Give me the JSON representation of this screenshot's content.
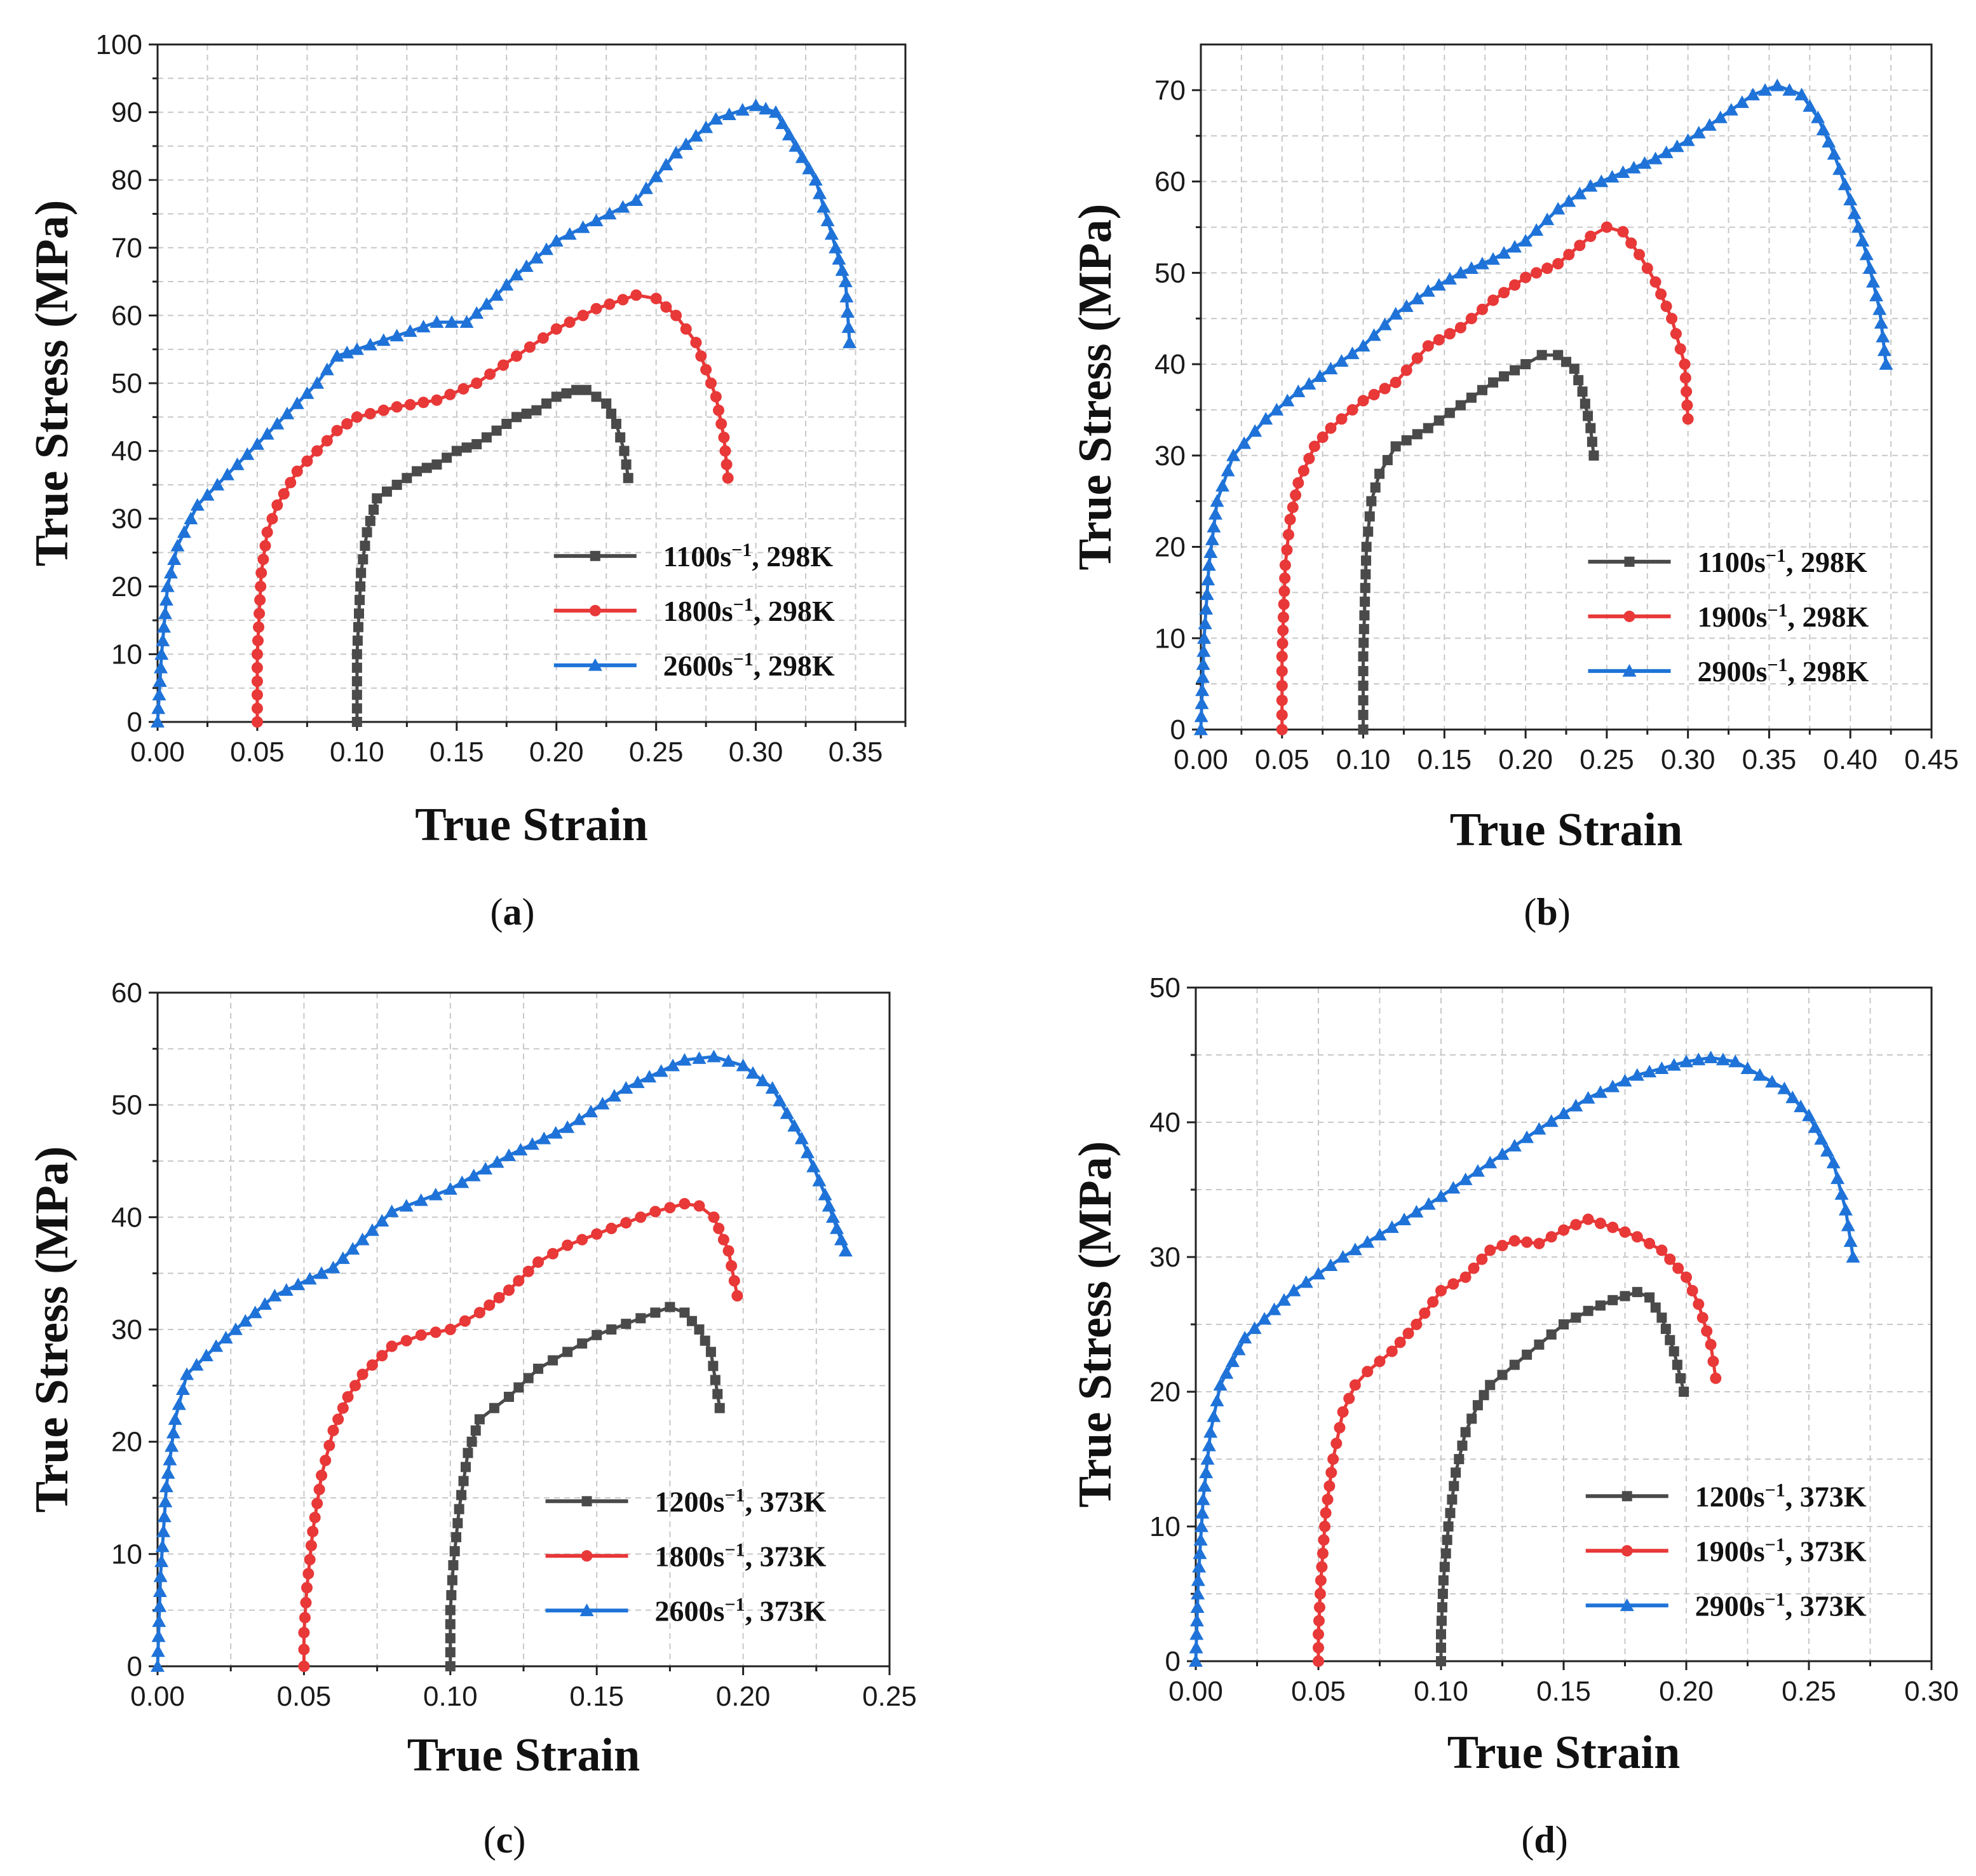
{
  "chart_data": [
    {
      "type": "line",
      "label": "a",
      "xlabel": "True Strain",
      "ylabel": "True Stress (MPa)",
      "xlim": [
        0,
        0.375
      ],
      "ylim": [
        0,
        100
      ],
      "xticks": [
        "0.00",
        "0.05",
        "0.10",
        "0.15",
        "0.20",
        "0.25",
        "0.30",
        "0.35"
      ],
      "yticks": [
        "0",
        "10",
        "20",
        "30",
        "40",
        "50",
        "60",
        "70",
        "80",
        "90",
        "100"
      ],
      "xgrid_step": 0.025,
      "ygrid_step": 5,
      "legend": {
        "placement": "lower-right"
      },
      "series": [
        {
          "name": "1100s−1, 298K",
          "rate": "1100",
          "temp": ", 298K",
          "color": "#4a4a4a",
          "marker": "square",
          "x": [
            0.1,
            0.1,
            0.102,
            0.105,
            0.11,
            0.12,
            0.13,
            0.14,
            0.15,
            0.16,
            0.17,
            0.18,
            0.19,
            0.2,
            0.21,
            0.215,
            0.22,
            0.225,
            0.23,
            0.234,
            0.236
          ],
          "y": [
            0,
            10,
            22,
            28,
            33,
            35,
            37,
            38,
            40,
            41,
            43,
            45,
            46,
            48,
            49,
            49,
            48,
            47,
            44,
            40,
            36
          ]
        },
        {
          "name": "1800s−1, 298K",
          "rate": "1800",
          "temp": ", 298K",
          "color": "#e83838",
          "marker": "circle",
          "x": [
            0.05,
            0.05,
            0.052,
            0.055,
            0.06,
            0.07,
            0.08,
            0.09,
            0.1,
            0.12,
            0.14,
            0.16,
            0.18,
            0.2,
            0.22,
            0.24,
            0.25,
            0.26,
            0.27,
            0.28,
            0.284,
            0.286
          ],
          "y": [
            0,
            10,
            22,
            28,
            32,
            37,
            40,
            43,
            45,
            46.5,
            47.5,
            50,
            54,
            58,
            61,
            63,
            62.5,
            60,
            56,
            48,
            42,
            36
          ]
        },
        {
          "name": "2600s−1, 298K",
          "rate": "2600",
          "temp": ", 298K",
          "color": "#1f73d8",
          "marker": "triangle",
          "x": [
            0,
            0.002,
            0.005,
            0.01,
            0.02,
            0.04,
            0.06,
            0.08,
            0.09,
            0.1,
            0.12,
            0.14,
            0.155,
            0.17,
            0.18,
            0.2,
            0.22,
            0.24,
            0.26,
            0.28,
            0.3,
            0.31,
            0.32,
            0.33,
            0.34,
            0.345,
            0.347
          ],
          "y": [
            0,
            10,
            20,
            26,
            32,
            38,
            44,
            50,
            54,
            55,
            57,
            59,
            59,
            63,
            66,
            71,
            74,
            77,
            84,
            89,
            91,
            90,
            85,
            80,
            70,
            65,
            56
          ]
        }
      ]
    },
    {
      "type": "line",
      "label": "b",
      "xlabel": "True Strain",
      "ylabel": "True Stress (MPa)",
      "xlim": [
        0,
        0.45
      ],
      "ylim": [
        0,
        75
      ],
      "xticks": [
        "0.00",
        "0.05",
        "0.10",
        "0.15",
        "0.20",
        "0.25",
        "0.30",
        "0.35",
        "0.40",
        "0.45"
      ],
      "yticks": [
        "0",
        "10",
        "20",
        "30",
        "40",
        "50",
        "60",
        "70"
      ],
      "xgrid_step": 0.025,
      "ygrid_step": 5,
      "legend": {
        "placement": "lower-right"
      },
      "series": [
        {
          "name": "1100s−1, 298K",
          "rate": "1100",
          "temp": ", 298K",
          "color": "#4a4a4a",
          "marker": "square",
          "x": [
            0.1,
            0.1,
            0.102,
            0.105,
            0.11,
            0.12,
            0.14,
            0.16,
            0.18,
            0.2,
            0.21,
            0.22,
            0.23,
            0.235,
            0.24,
            0.242
          ],
          "y": [
            0,
            8,
            20,
            25,
            28,
            31,
            33,
            35.5,
            38,
            40,
            41,
            41,
            39.5,
            37,
            33,
            30
          ]
        },
        {
          "name": "1900s−1, 298K",
          "rate": "1900",
          "temp": ", 298K",
          "color": "#e83838",
          "marker": "circle",
          "x": [
            0.05,
            0.05,
            0.052,
            0.055,
            0.06,
            0.07,
            0.08,
            0.1,
            0.12,
            0.14,
            0.16,
            0.18,
            0.2,
            0.22,
            0.24,
            0.25,
            0.26,
            0.27,
            0.28,
            0.29,
            0.298,
            0.3
          ],
          "y": [
            0,
            8,
            18,
            23,
            27,
            31,
            33,
            36,
            38,
            42,
            44,
            47,
            49.5,
            51,
            54,
            55,
            54.5,
            52,
            49,
            45,
            40,
            34
          ]
        },
        {
          "name": "2900s−1, 298K",
          "rate": "2900",
          "temp": ", 298K",
          "color": "#1f73d8",
          "marker": "triangle",
          "x": [
            0,
            0.002,
            0.005,
            0.01,
            0.02,
            0.04,
            0.06,
            0.08,
            0.1,
            0.12,
            0.14,
            0.16,
            0.18,
            0.2,
            0.22,
            0.24,
            0.26,
            0.28,
            0.3,
            0.32,
            0.34,
            0.355,
            0.37,
            0.38,
            0.39,
            0.4,
            0.41,
            0.418,
            0.422
          ],
          "y": [
            0,
            10,
            18,
            25,
            30,
            34,
            37,
            39.5,
            42,
            45.5,
            48,
            50,
            51.5,
            53.5,
            57,
            59.5,
            61,
            62.5,
            64.5,
            67,
            69.5,
            70.5,
            69.5,
            67,
            63,
            58,
            52,
            46,
            40
          ]
        }
      ]
    },
    {
      "type": "line",
      "label": "c",
      "xlabel": "True Strain",
      "ylabel": "True Stress (MPa)",
      "xlim": [
        0,
        0.25
      ],
      "ylim": [
        0,
        60
      ],
      "xticks": [
        "0.00",
        "0.05",
        "0.10",
        "0.15",
        "0.20",
        "0.25"
      ],
      "yticks": [
        "0",
        "10",
        "20",
        "30",
        "40",
        "50",
        "60"
      ],
      "xgrid_step": 0.025,
      "ygrid_step": 5,
      "legend": {
        "placement": "lower-right"
      },
      "series": [
        {
          "name": "1200s−1, 373K",
          "rate": "1200",
          "temp": ", 373K",
          "color": "#4a4a4a",
          "marker": "square",
          "x": [
            0.1,
            0.1,
            0.101,
            0.103,
            0.106,
            0.11,
            0.115,
            0.12,
            0.13,
            0.14,
            0.15,
            0.16,
            0.17,
            0.175,
            0.18,
            0.185,
            0.189,
            0.192
          ],
          "y": [
            0,
            5,
            9,
            14,
            19,
            22,
            23,
            24,
            26.5,
            28,
            29.5,
            30.5,
            31.5,
            32,
            31.5,
            30,
            28,
            23
          ]
        },
        {
          "name": "1800s−1, 373K",
          "rate": "1800",
          "temp": ", 373K",
          "color": "#e83838",
          "marker": "circle",
          "x": [
            0.05,
            0.05,
            0.051,
            0.053,
            0.056,
            0.06,
            0.065,
            0.07,
            0.08,
            0.09,
            0.1,
            0.11,
            0.12,
            0.13,
            0.14,
            0.15,
            0.16,
            0.17,
            0.18,
            0.185,
            0.19,
            0.195,
            0.198
          ],
          "y": [
            0,
            3,
            7,
            12,
            17,
            21,
            24,
            26,
            28.5,
            29.5,
            30,
            31.5,
            33.5,
            36,
            37.5,
            38.5,
            39.5,
            40.5,
            41.2,
            41,
            40,
            37,
            33
          ]
        },
        {
          "name": "2600s−1, 373K",
          "rate": "2600",
          "temp": ", 373K",
          "color": "#1f73d8",
          "marker": "triangle",
          "x": [
            0,
            0.001,
            0.003,
            0.006,
            0.01,
            0.02,
            0.04,
            0.06,
            0.07,
            0.08,
            0.1,
            0.12,
            0.14,
            0.16,
            0.18,
            0.19,
            0.2,
            0.21,
            0.22,
            0.228,
            0.232,
            0.235
          ],
          "y": [
            0,
            8,
            16,
            22,
            26,
            28.5,
            33,
            35.5,
            38,
            40.5,
            42.5,
            45.5,
            48,
            51.5,
            54,
            54.3,
            53.5,
            51.5,
            47,
            42,
            39,
            37
          ]
        }
      ]
    },
    {
      "type": "line",
      "label": "d",
      "xlabel": "True Strain",
      "ylabel": "True Stress (MPa)",
      "xlim": [
        0,
        0.3
      ],
      "ylim": [
        0,
        50
      ],
      "xticks": [
        "0.00",
        "0.05",
        "0.10",
        "0.15",
        "0.20",
        "0.25",
        "0.30"
      ],
      "yticks": [
        "0",
        "10",
        "20",
        "30",
        "40",
        "50"
      ],
      "xgrid_step": 0.025,
      "ygrid_step": 5,
      "legend": {
        "placement": "lower-right"
      },
      "series": [
        {
          "name": "1200s−1, 373K",
          "rate": "1200",
          "temp": ", 373K",
          "color": "#4a4a4a",
          "marker": "square",
          "x": [
            0.1,
            0.1,
            0.101,
            0.103,
            0.106,
            0.11,
            0.115,
            0.12,
            0.13,
            0.14,
            0.15,
            0.16,
            0.17,
            0.18,
            0.185,
            0.19,
            0.195,
            0.199
          ],
          "y": [
            0,
            2,
            6,
            10,
            14,
            17,
            19,
            20.5,
            22,
            23.5,
            25,
            26,
            26.8,
            27.4,
            27,
            25.5,
            23,
            20
          ]
        },
        {
          "name": "1900s−1, 373K",
          "rate": "1900",
          "temp": ", 373K",
          "color": "#e83838",
          "marker": "circle",
          "x": [
            0.05,
            0.05,
            0.051,
            0.053,
            0.056,
            0.06,
            0.065,
            0.07,
            0.08,
            0.09,
            0.1,
            0.11,
            0.12,
            0.13,
            0.14,
            0.15,
            0.16,
            0.17,
            0.18,
            0.19,
            0.2,
            0.205,
            0.21,
            0.212
          ],
          "y": [
            0,
            2,
            6,
            11,
            15,
            18.5,
            20.5,
            21.5,
            23,
            25,
            27.5,
            28.5,
            30.5,
            31.2,
            31,
            32,
            32.8,
            32.2,
            31.5,
            30.5,
            28.5,
            26.5,
            23.5,
            21
          ]
        },
        {
          "name": "2900s−1, 373K",
          "rate": "2900",
          "temp": ", 373K",
          "color": "#1f73d8",
          "marker": "triangle",
          "x": [
            0,
            0.001,
            0.003,
            0.006,
            0.01,
            0.02,
            0.04,
            0.06,
            0.08,
            0.1,
            0.12,
            0.14,
            0.16,
            0.18,
            0.2,
            0.21,
            0.22,
            0.23,
            0.24,
            0.25,
            0.26,
            0.265,
            0.268
          ],
          "y": [
            0,
            6,
            12,
            17,
            20.5,
            24,
            27.5,
            30,
            32.2,
            34.5,
            37,
            39.5,
            41.8,
            43.5,
            44.5,
            44.8,
            44.5,
            43.5,
            42.5,
            40.5,
            37,
            33.5,
            30
          ]
        }
      ]
    }
  ]
}
